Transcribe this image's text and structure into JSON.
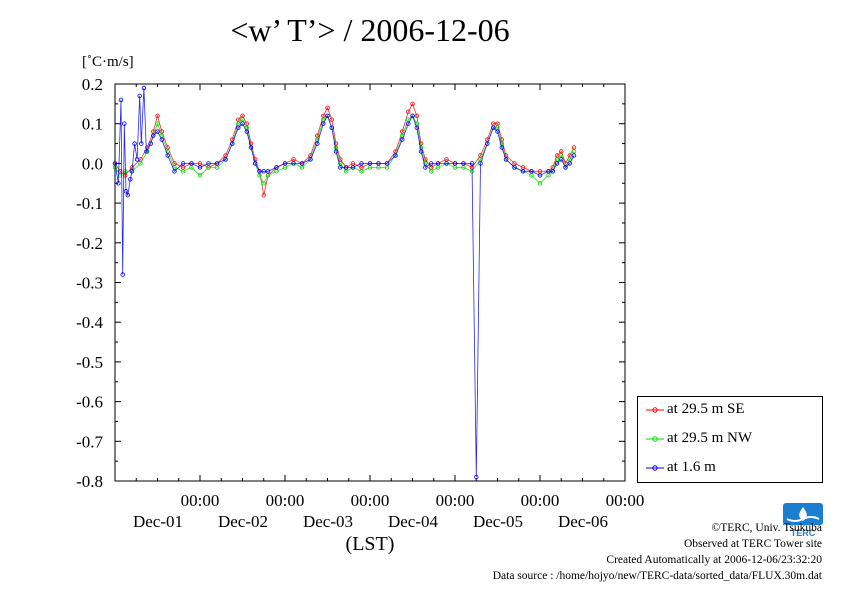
{
  "chart_data": {
    "type": "line",
    "title": "<w’ T’> / 2006-12-06",
    "unit_label": "[˚C·m/s]",
    "xlabel": "(LST)",
    "ylim": [
      -0.8,
      0.2
    ],
    "yticks": [
      "0.2",
      "0.1",
      "0.0",
      "-0.1",
      "-0.2",
      "-0.3",
      "-0.4",
      "-0.5",
      "-0.6",
      "-0.7",
      "-0.8"
    ],
    "xlim_days": [
      0,
      6.0
    ],
    "xticks": [
      {
        "t": 1.0,
        "time": "00:00",
        "date": "Dec-01"
      },
      {
        "t": 2.0,
        "time": "00:00",
        "date": "Dec-02"
      },
      {
        "t": 3.0,
        "time": "00:00",
        "date": "Dec-03"
      },
      {
        "t": 4.0,
        "time": "00:00",
        "date": "Dec-04"
      },
      {
        "t": 5.0,
        "time": "00:00",
        "date": "Dec-05"
      },
      {
        "t": 6.0,
        "time": "00:00",
        "date": "Dec-06"
      }
    ],
    "grid": false,
    "legend_placement": "right",
    "series": [
      {
        "name": "at 29.5 m SE",
        "color": "#ff0000",
        "points": [
          [
            0.0,
            0.0
          ],
          [
            0.06,
            -0.02
          ],
          [
            0.12,
            -0.03
          ],
          [
            0.2,
            -0.01
          ],
          [
            0.3,
            0.01
          ],
          [
            0.38,
            0.04
          ],
          [
            0.45,
            0.08
          ],
          [
            0.5,
            0.12
          ],
          [
            0.55,
            0.08
          ],
          [
            0.62,
            0.04
          ],
          [
            0.7,
            0.0
          ],
          [
            0.8,
            -0.01
          ],
          [
            0.9,
            0.0
          ],
          [
            1.0,
            0.0
          ],
          [
            1.1,
            -0.01
          ],
          [
            1.2,
            0.0
          ],
          [
            1.3,
            0.02
          ],
          [
            1.38,
            0.06
          ],
          [
            1.45,
            0.11
          ],
          [
            1.5,
            0.12
          ],
          [
            1.55,
            0.1
          ],
          [
            1.6,
            0.05
          ],
          [
            1.65,
            0.01
          ],
          [
            1.7,
            -0.02
          ],
          [
            1.75,
            -0.08
          ],
          [
            1.8,
            -0.03
          ],
          [
            1.9,
            -0.01
          ],
          [
            2.0,
            0.0
          ],
          [
            2.1,
            0.01
          ],
          [
            2.2,
            0.0
          ],
          [
            2.3,
            0.02
          ],
          [
            2.38,
            0.07
          ],
          [
            2.45,
            0.12
          ],
          [
            2.5,
            0.14
          ],
          [
            2.55,
            0.11
          ],
          [
            2.6,
            0.05
          ],
          [
            2.65,
            0.01
          ],
          [
            2.72,
            -0.01
          ],
          [
            2.8,
            0.0
          ],
          [
            2.9,
            -0.01
          ],
          [
            3.0,
            0.0
          ],
          [
            3.1,
            0.0
          ],
          [
            3.2,
            0.0
          ],
          [
            3.3,
            0.03
          ],
          [
            3.38,
            0.08
          ],
          [
            3.45,
            0.13
          ],
          [
            3.5,
            0.15
          ],
          [
            3.55,
            0.12
          ],
          [
            3.6,
            0.05
          ],
          [
            3.65,
            0.01
          ],
          [
            3.72,
            -0.01
          ],
          [
            3.8,
            0.0
          ],
          [
            3.9,
            0.01
          ],
          [
            4.0,
            0.0
          ],
          [
            4.1,
            0.0
          ],
          [
            4.2,
            -0.01
          ],
          [
            4.3,
            0.02
          ],
          [
            4.38,
            0.06
          ],
          [
            4.45,
            0.1
          ],
          [
            4.5,
            0.1
          ],
          [
            4.55,
            0.06
          ],
          [
            4.6,
            0.02
          ],
          [
            4.7,
            0.0
          ],
          [
            4.8,
            -0.01
          ],
          [
            4.9,
            -0.02
          ],
          [
            5.0,
            -0.02
          ],
          [
            5.1,
            -0.02
          ],
          [
            5.15,
            -0.01
          ],
          [
            5.2,
            0.02
          ],
          [
            5.25,
            0.03
          ],
          [
            5.3,
            0.0
          ],
          [
            5.35,
            0.02
          ],
          [
            5.4,
            0.04
          ]
        ]
      },
      {
        "name": "at 29.5 m NW",
        "color": "#00dd00",
        "points": [
          [
            0.0,
            -0.01
          ],
          [
            0.06,
            -0.03
          ],
          [
            0.12,
            -0.02
          ],
          [
            0.2,
            -0.02
          ],
          [
            0.3,
            0.0
          ],
          [
            0.38,
            0.03
          ],
          [
            0.45,
            0.07
          ],
          [
            0.5,
            0.1
          ],
          [
            0.55,
            0.07
          ],
          [
            0.62,
            0.03
          ],
          [
            0.7,
            -0.01
          ],
          [
            0.8,
            -0.02
          ],
          [
            0.9,
            -0.01
          ],
          [
            1.0,
            -0.03
          ],
          [
            1.1,
            -0.01
          ],
          [
            1.2,
            -0.01
          ],
          [
            1.3,
            0.01
          ],
          [
            1.38,
            0.05
          ],
          [
            1.45,
            0.1
          ],
          [
            1.5,
            0.11
          ],
          [
            1.55,
            0.09
          ],
          [
            1.6,
            0.04
          ],
          [
            1.65,
            0.0
          ],
          [
            1.7,
            -0.03
          ],
          [
            1.75,
            -0.05
          ],
          [
            1.8,
            -0.03
          ],
          [
            1.9,
            -0.02
          ],
          [
            2.0,
            -0.01
          ],
          [
            2.1,
            0.0
          ],
          [
            2.2,
            -0.01
          ],
          [
            2.3,
            0.01
          ],
          [
            2.38,
            0.06
          ],
          [
            2.45,
            0.11
          ],
          [
            2.5,
            0.12
          ],
          [
            2.55,
            0.09
          ],
          [
            2.6,
            0.04
          ],
          [
            2.65,
            0.0
          ],
          [
            2.72,
            -0.02
          ],
          [
            2.8,
            -0.01
          ],
          [
            2.9,
            -0.02
          ],
          [
            3.0,
            -0.01
          ],
          [
            3.1,
            -0.01
          ],
          [
            3.2,
            -0.01
          ],
          [
            3.3,
            0.02
          ],
          [
            3.38,
            0.07
          ],
          [
            3.45,
            0.11
          ],
          [
            3.5,
            0.12
          ],
          [
            3.55,
            0.1
          ],
          [
            3.6,
            0.04
          ],
          [
            3.65,
            0.0
          ],
          [
            3.72,
            -0.02
          ],
          [
            3.8,
            -0.01
          ],
          [
            3.9,
            0.0
          ],
          [
            4.0,
            -0.01
          ],
          [
            4.1,
            -0.01
          ],
          [
            4.2,
            -0.02
          ],
          [
            4.3,
            0.01
          ],
          [
            4.38,
            0.05
          ],
          [
            4.45,
            0.09
          ],
          [
            4.5,
            0.09
          ],
          [
            4.55,
            0.05
          ],
          [
            4.6,
            0.01
          ],
          [
            4.7,
            -0.01
          ],
          [
            4.8,
            -0.02
          ],
          [
            4.9,
            -0.03
          ],
          [
            5.0,
            -0.05
          ],
          [
            5.1,
            -0.03
          ],
          [
            5.15,
            -0.02
          ],
          [
            5.2,
            0.01
          ],
          [
            5.25,
            0.02
          ],
          [
            5.3,
            -0.01
          ],
          [
            5.35,
            0.01
          ],
          [
            5.4,
            0.03
          ]
        ]
      },
      {
        "name": "at 1.6 m",
        "color": "#0000ff",
        "points": [
          [
            0.0,
            0.0
          ],
          [
            0.04,
            -0.05
          ],
          [
            0.07,
            0.16
          ],
          [
            0.09,
            -0.28
          ],
          [
            0.11,
            0.1
          ],
          [
            0.13,
            -0.07
          ],
          [
            0.15,
            -0.08
          ],
          [
            0.18,
            -0.04
          ],
          [
            0.2,
            -0.02
          ],
          [
            0.23,
            0.05
          ],
          [
            0.26,
            0.01
          ],
          [
            0.29,
            0.17
          ],
          [
            0.31,
            0.05
          ],
          [
            0.34,
            0.19
          ],
          [
            0.37,
            0.03
          ],
          [
            0.42,
            0.05
          ],
          [
            0.45,
            0.07
          ],
          [
            0.5,
            0.08
          ],
          [
            0.55,
            0.06
          ],
          [
            0.62,
            0.02
          ],
          [
            0.7,
            -0.02
          ],
          [
            0.8,
            0.0
          ],
          [
            0.9,
            0.0
          ],
          [
            1.0,
            -0.01
          ],
          [
            1.1,
            0.0
          ],
          [
            1.2,
            0.0
          ],
          [
            1.3,
            0.01
          ],
          [
            1.38,
            0.05
          ],
          [
            1.45,
            0.09
          ],
          [
            1.5,
            0.1
          ],
          [
            1.55,
            0.08
          ],
          [
            1.6,
            0.04
          ],
          [
            1.65,
            0.0
          ],
          [
            1.7,
            -0.02
          ],
          [
            1.75,
            -0.02
          ],
          [
            1.8,
            -0.02
          ],
          [
            1.9,
            -0.01
          ],
          [
            2.0,
            0.0
          ],
          [
            2.1,
            0.0
          ],
          [
            2.2,
            0.0
          ],
          [
            2.3,
            0.01
          ],
          [
            2.38,
            0.05
          ],
          [
            2.45,
            0.1
          ],
          [
            2.5,
            0.12
          ],
          [
            2.55,
            0.09
          ],
          [
            2.6,
            0.03
          ],
          [
            2.65,
            -0.01
          ],
          [
            2.72,
            -0.01
          ],
          [
            2.8,
            -0.01
          ],
          [
            2.9,
            0.0
          ],
          [
            3.0,
            0.0
          ],
          [
            3.1,
            0.0
          ],
          [
            3.2,
            0.0
          ],
          [
            3.3,
            0.02
          ],
          [
            3.38,
            0.06
          ],
          [
            3.45,
            0.1
          ],
          [
            3.5,
            0.12
          ],
          [
            3.55,
            0.09
          ],
          [
            3.6,
            0.03
          ],
          [
            3.65,
            -0.01
          ],
          [
            3.72,
            0.0
          ],
          [
            3.8,
            0.0
          ],
          [
            3.9,
            0.0
          ],
          [
            4.0,
            0.0
          ],
          [
            4.1,
            0.0
          ],
          [
            4.2,
            0.0
          ],
          [
            4.25,
            -0.79
          ],
          [
            4.3,
            0.0
          ],
          [
            4.38,
            0.05
          ],
          [
            4.45,
            0.09
          ],
          [
            4.5,
            0.08
          ],
          [
            4.55,
            0.04
          ],
          [
            4.6,
            0.01
          ],
          [
            4.7,
            -0.01
          ],
          [
            4.8,
            -0.02
          ],
          [
            4.9,
            -0.02
          ],
          [
            5.0,
            -0.03
          ],
          [
            5.1,
            -0.02
          ],
          [
            5.15,
            -0.02
          ],
          [
            5.2,
            0.0
          ],
          [
            5.25,
            0.01
          ],
          [
            5.3,
            -0.01
          ],
          [
            5.35,
            0.0
          ],
          [
            5.4,
            0.02
          ]
        ]
      }
    ]
  },
  "credits": {
    "line1": "©TERC, Univ. Tsukuba",
    "line2": "Observed at TERC Tower site",
    "line3": "Created Automatically at 2006-12-06/23:32:20",
    "line4": "Data source : /home/hojyo/new/TERC-data/sorted_data/FLUX.30m.dat"
  },
  "logo": {
    "text": "TERC",
    "color": "#1a7fd0"
  }
}
